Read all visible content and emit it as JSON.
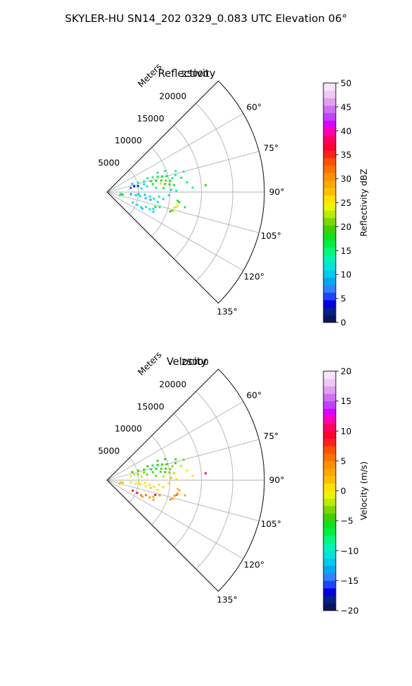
{
  "figure_title": "SKYLER-HU  SN14_202  0329_0.083 UTC Elevation 06°",
  "chart_data": [
    {
      "type": "polar_ppi_scatter",
      "title": "Reflectivity",
      "range_label": "Meters",
      "range_ticks": [
        5000,
        10000,
        15000,
        20000,
        25000
      ],
      "range_tick_labels": [
        "5000",
        "10000",
        "15000",
        "20000",
        "25000"
      ],
      "range_max": 25000,
      "azimuth_ticks": [
        60,
        75,
        90,
        105,
        120,
        135
      ],
      "azimuth_tick_labels": [
        "60°",
        "75°",
        "90°",
        "105°",
        "120°",
        "135°"
      ],
      "azimuth_range": [
        45,
        135
      ],
      "grid": true,
      "colorbar": {
        "label": "Reflectivity dBZ",
        "min": 0,
        "max": 50,
        "ticks": [
          0,
          5,
          10,
          15,
          20,
          25,
          30,
          35,
          40,
          45,
          50
        ],
        "tick_labels": [
          "0",
          "5",
          "10",
          "15",
          "20",
          "25",
          "30",
          "35",
          "40",
          "45",
          "50"
        ],
        "bands": [
          "#0a1560",
          "#06208a",
          "#0000e6",
          "#1e44ff",
          "#3280ff",
          "#00a8f0",
          "#00c8f0",
          "#00e4dc",
          "#00f4b4",
          "#00f880",
          "#00f040",
          "#10e020",
          "#40d000",
          "#7cd800",
          "#b8ec00",
          "#eef400",
          "#ffe000",
          "#ffc000",
          "#ffa800",
          "#ff9000",
          "#ff7000",
          "#ff5000",
          "#ff2020",
          "#ff0030",
          "#ff0060",
          "#ff00b0",
          "#e000ff",
          "#c040ff",
          "#d070f0",
          "#e0a0f0",
          "#f0c8f8",
          "#f8e4fa"
        ]
      },
      "points": [
        {
          "az": 72,
          "r": 4200,
          "v": 10
        },
        {
          "az": 73,
          "r": 5200,
          "v": 13
        },
        {
          "az": 74,
          "r": 6100,
          "v": 12
        },
        {
          "az": 71,
          "r": 6800,
          "v": 15
        },
        {
          "az": 72,
          "r": 7600,
          "v": 14
        },
        {
          "az": 73,
          "r": 8400,
          "v": 16
        },
        {
          "az": 74,
          "r": 9100,
          "v": 18
        },
        {
          "az": 75,
          "r": 9800,
          "v": 17
        },
        {
          "az": 76,
          "r": 7200,
          "v": 19
        },
        {
          "az": 77,
          "r": 8000,
          "v": 20
        },
        {
          "az": 78,
          "r": 8800,
          "v": 18
        },
        {
          "az": 79,
          "r": 9500,
          "v": 21
        },
        {
          "az": 80,
          "r": 10200,
          "v": 19
        },
        {
          "az": 81,
          "r": 8600,
          "v": 22
        },
        {
          "az": 82,
          "r": 9300,
          "v": 20
        },
        {
          "az": 83,
          "r": 10000,
          "v": 18
        },
        {
          "az": 84,
          "r": 10700,
          "v": 17
        },
        {
          "az": 80,
          "r": 7400,
          "v": 16
        },
        {
          "az": 82,
          "r": 6400,
          "v": 14
        },
        {
          "az": 84,
          "r": 5500,
          "v": 12
        },
        {
          "az": 85,
          "r": 7800,
          "v": 15
        },
        {
          "az": 86,
          "r": 9000,
          "v": 17
        },
        {
          "az": 78,
          "r": 10600,
          "v": 14
        },
        {
          "az": 76,
          "r": 11200,
          "v": 13
        },
        {
          "az": 79,
          "r": 12000,
          "v": 16
        },
        {
          "az": 83,
          "r": 12800,
          "v": 15
        },
        {
          "az": 87,
          "r": 13600,
          "v": 14
        },
        {
          "az": 75,
          "r": 12600,
          "v": 12
        },
        {
          "az": 73,
          "r": 11400,
          "v": 14
        },
        {
          "az": 70,
          "r": 9800,
          "v": 13
        },
        {
          "az": 69,
          "r": 8600,
          "v": 12
        },
        {
          "az": 78,
          "r": 6000,
          "v": 11
        },
        {
          "az": 78,
          "r": 4400,
          "v": 4
        },
        {
          "az": 79,
          "r": 5000,
          "v": 3
        },
        {
          "az": 80,
          "r": 3800,
          "v": 6
        },
        {
          "az": 95,
          "r": 3800,
          "v": 9
        },
        {
          "az": 96,
          "r": 4600,
          "v": 10
        },
        {
          "az": 97,
          "r": 5300,
          "v": 11
        },
        {
          "az": 94,
          "r": 6000,
          "v": 10
        },
        {
          "az": 96,
          "r": 6800,
          "v": 12
        },
        {
          "az": 98,
          "r": 7500,
          "v": 11
        },
        {
          "az": 95,
          "r": 8300,
          "v": 13
        },
        {
          "az": 97,
          "r": 9000,
          "v": 12
        },
        {
          "az": 99,
          "r": 6200,
          "v": 10
        },
        {
          "az": 100,
          "r": 7000,
          "v": 9
        },
        {
          "az": 101,
          "r": 8200,
          "v": 11
        },
        {
          "az": 93,
          "r": 9800,
          "v": 12
        },
        {
          "az": 94,
          "r": 5000,
          "v": 10
        },
        {
          "az": 112,
          "r": 4400,
          "v": 11
        },
        {
          "az": 113,
          "r": 5200,
          "v": 13
        },
        {
          "az": 114,
          "r": 5900,
          "v": 12
        },
        {
          "az": 111,
          "r": 6600,
          "v": 14
        },
        {
          "az": 112,
          "r": 7300,
          "v": 12
        },
        {
          "az": 113,
          "r": 8000,
          "v": 11
        },
        {
          "az": 115,
          "r": 6200,
          "v": 10
        },
        {
          "az": 110,
          "r": 7800,
          "v": 13
        },
        {
          "az": 98,
          "r": 2200,
          "v": 16
        },
        {
          "az": 99,
          "r": 2500,
          "v": 20
        },
        {
          "az": 105,
          "r": 2100,
          "v": 14
        },
        {
          "az": 88,
          "r": 10200,
          "v": 15
        },
        {
          "az": 89,
          "r": 11000,
          "v": 13
        },
        {
          "az": 97,
          "r": 11300,
          "v": 18
        },
        {
          "az": 98,
          "r": 11600,
          "v": 20
        },
        {
          "az": 101,
          "r": 11400,
          "v": 26
        },
        {
          "az": 102,
          "r": 11300,
          "v": 24
        },
        {
          "az": 103,
          "r": 11000,
          "v": 22
        },
        {
          "az": 106,
          "r": 10800,
          "v": 21
        },
        {
          "az": 107,
          "r": 10500,
          "v": 19
        },
        {
          "az": 86,
          "r": 15700,
          "v": 20
        },
        {
          "az": 101,
          "r": 12600,
          "v": 16
        },
        {
          "az": 106,
          "r": 8700,
          "v": 14
        },
        {
          "az": 107,
          "r": 8000,
          "v": 18
        }
      ]
    },
    {
      "type": "polar_ppi_scatter",
      "title": "Velocity",
      "range_label": "Meters",
      "range_ticks": [
        5000,
        10000,
        15000,
        20000,
        25000
      ],
      "range_tick_labels": [
        "5000",
        "10000",
        "15000",
        "20000",
        "25000"
      ],
      "range_max": 25000,
      "azimuth_ticks": [
        60,
        75,
        90,
        105,
        120,
        135
      ],
      "azimuth_tick_labels": [
        "60°",
        "75°",
        "90°",
        "105°",
        "120°",
        "135°"
      ],
      "azimuth_range": [
        45,
        135
      ],
      "grid": true,
      "colorbar": {
        "label": "Velocity (m/s)",
        "min": -20,
        "max": 20,
        "ticks": [
          -20,
          -15,
          -10,
          -5,
          0,
          5,
          10,
          15,
          20
        ],
        "tick_labels": [
          "−20",
          "−15",
          "−10",
          "−5",
          "0",
          "5",
          "10",
          "15",
          "20"
        ],
        "bands": [
          "#0a1560",
          "#06208a",
          "#0000e6",
          "#1e44ff",
          "#3280ff",
          "#00a8f0",
          "#00c8f0",
          "#00e4dc",
          "#00f4b4",
          "#00f880",
          "#00f040",
          "#10e020",
          "#40d000",
          "#7cd800",
          "#b8ec00",
          "#eef400",
          "#ffe000",
          "#ffc000",
          "#ffa800",
          "#ff9000",
          "#ff7000",
          "#ff5000",
          "#ff2020",
          "#ff0030",
          "#ff0060",
          "#ff00b0",
          "#e000ff",
          "#c040ff",
          "#d070f0",
          "#e0a0f0",
          "#f0c8f8",
          "#f8e4fa"
        ]
      },
      "points": [
        {
          "az": 72,
          "r": 4200,
          "v": -5
        },
        {
          "az": 73,
          "r": 5200,
          "v": -4
        },
        {
          "az": 74,
          "r": 6100,
          "v": -6
        },
        {
          "az": 71,
          "r": 6800,
          "v": -5
        },
        {
          "az": 72,
          "r": 7600,
          "v": -7
        },
        {
          "az": 73,
          "r": 8400,
          "v": -6
        },
        {
          "az": 74,
          "r": 9100,
          "v": -5
        },
        {
          "az": 75,
          "r": 9800,
          "v": -4
        },
        {
          "az": 76,
          "r": 7200,
          "v": -6
        },
        {
          "az": 77,
          "r": 8000,
          "v": -7
        },
        {
          "az": 78,
          "r": 8800,
          "v": -5
        },
        {
          "az": 79,
          "r": 9500,
          "v": -4
        },
        {
          "az": 80,
          "r": 10200,
          "v": -3
        },
        {
          "az": 81,
          "r": 8600,
          "v": -5
        },
        {
          "az": 82,
          "r": 9300,
          "v": -4
        },
        {
          "az": 83,
          "r": 10000,
          "v": -3
        },
        {
          "az": 84,
          "r": 10700,
          "v": -2
        },
        {
          "az": 80,
          "r": 7400,
          "v": -4
        },
        {
          "az": 82,
          "r": 6400,
          "v": -3
        },
        {
          "az": 84,
          "r": 5500,
          "v": -2
        },
        {
          "az": 85,
          "r": 7800,
          "v": -3
        },
        {
          "az": 86,
          "r": 9000,
          "v": -2
        },
        {
          "az": 78,
          "r": 10600,
          "v": -3
        },
        {
          "az": 76,
          "r": 11200,
          "v": -4
        },
        {
          "az": 79,
          "r": 12000,
          "v": -2
        },
        {
          "az": 83,
          "r": 12800,
          "v": -1
        },
        {
          "az": 87,
          "r": 13600,
          "v": 0
        },
        {
          "az": 75,
          "r": 12600,
          "v": -3
        },
        {
          "az": 73,
          "r": 11400,
          "v": -4
        },
        {
          "az": 70,
          "r": 9800,
          "v": -5
        },
        {
          "az": 69,
          "r": 8600,
          "v": -4
        },
        {
          "az": 78,
          "r": 6000,
          "v": -3
        },
        {
          "az": 78,
          "r": 4400,
          "v": -2
        },
        {
          "az": 79,
          "r": 5000,
          "v": -3
        },
        {
          "az": 80,
          "r": 3800,
          "v": -1
        },
        {
          "az": 95,
          "r": 3800,
          "v": 1
        },
        {
          "az": 96,
          "r": 4600,
          "v": 0
        },
        {
          "az": 97,
          "r": 5300,
          "v": 1
        },
        {
          "az": 94,
          "r": 6000,
          "v": 0
        },
        {
          "az": 96,
          "r": 6800,
          "v": 1
        },
        {
          "az": 98,
          "r": 7500,
          "v": 0
        },
        {
          "az": 95,
          "r": 8300,
          "v": 1
        },
        {
          "az": 97,
          "r": 9000,
          "v": 0
        },
        {
          "az": 99,
          "r": 6200,
          "v": 1
        },
        {
          "az": 100,
          "r": 7000,
          "v": 2
        },
        {
          "az": 101,
          "r": 8200,
          "v": 1
        },
        {
          "az": 93,
          "r": 9800,
          "v": 0
        },
        {
          "az": 94,
          "r": 5000,
          "v": 1
        },
        {
          "az": 112,
          "r": 4400,
          "v": 9
        },
        {
          "az": 113,
          "r": 5200,
          "v": 8
        },
        {
          "az": 114,
          "r": 5900,
          "v": 6
        },
        {
          "az": 111,
          "r": 6600,
          "v": 5
        },
        {
          "az": 112,
          "r": 7300,
          "v": 4
        },
        {
          "az": 113,
          "r": 8000,
          "v": 3
        },
        {
          "az": 115,
          "r": 6200,
          "v": 4
        },
        {
          "az": 110,
          "r": 7800,
          "v": 3
        },
        {
          "az": 98,
          "r": 2200,
          "v": 1
        },
        {
          "az": 99,
          "r": 2500,
          "v": 2
        },
        {
          "az": 105,
          "r": 2100,
          "v": 3
        },
        {
          "az": 88,
          "r": 10200,
          "v": 2
        },
        {
          "az": 89,
          "r": 11000,
          "v": 1
        },
        {
          "az": 97,
          "r": 11300,
          "v": 2
        },
        {
          "az": 98,
          "r": 11600,
          "v": 3
        },
        {
          "az": 101,
          "r": 11400,
          "v": 4
        },
        {
          "az": 102,
          "r": 11300,
          "v": 5
        },
        {
          "az": 103,
          "r": 11000,
          "v": 4
        },
        {
          "az": 106,
          "r": 10800,
          "v": 3
        },
        {
          "az": 107,
          "r": 10500,
          "v": 4
        },
        {
          "az": 86,
          "r": 15700,
          "v": 11
        },
        {
          "az": 101,
          "r": 12600,
          "v": 3
        },
        {
          "az": 106,
          "r": 8700,
          "v": 4
        },
        {
          "az": 107,
          "r": 8000,
          "v": 9
        }
      ]
    }
  ]
}
